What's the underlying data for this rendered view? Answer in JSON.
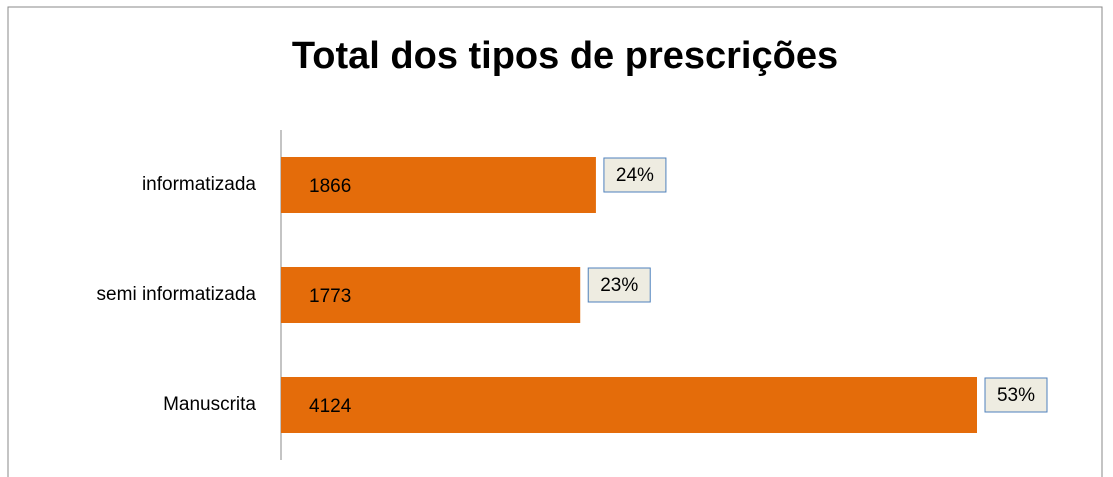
{
  "chart_data": {
    "type": "barh",
    "title": "Total dos tipos de prescrições",
    "categories": [
      "informatizada",
      "semi informatizada",
      "Manuscrita"
    ],
    "values": [
      1866,
      1773,
      4124
    ],
    "percent_labels": [
      "24%",
      "23%",
      "53%"
    ],
    "color": "#e46c0a"
  }
}
